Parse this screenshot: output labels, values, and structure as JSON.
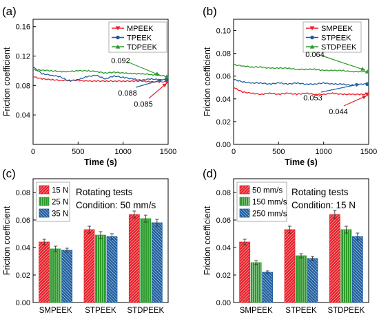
{
  "chart_data": [
    {
      "panel": "(a)",
      "type": "line",
      "xlabel": "Time (s)",
      "ylabel": "Friction coefficient",
      "xlim": [
        0,
        1500
      ],
      "ylim": [
        0.0,
        0.17
      ],
      "xticks": [
        0,
        500,
        1000,
        1500
      ],
      "yticks": [
        0.04,
        0.08,
        0.12,
        0.16
      ],
      "x": [
        0,
        100,
        200,
        300,
        400,
        500,
        600,
        700,
        800,
        900,
        1000,
        1100,
        1200,
        1300,
        1400,
        1500
      ],
      "series": [
        {
          "name": "MPEEK",
          "color": "#e8202a",
          "marker": "triangle-down",
          "values": [
            0.092,
            0.089,
            0.088,
            0.087,
            0.087,
            0.087,
            0.086,
            0.086,
            0.086,
            0.086,
            0.086,
            0.086,
            0.086,
            0.085,
            0.085,
            0.085
          ]
        },
        {
          "name": "TPEEK",
          "color": "#1f5fa0",
          "marker": "circle",
          "values": [
            0.105,
            0.096,
            0.094,
            0.092,
            0.086,
            0.088,
            0.092,
            0.094,
            0.089,
            0.093,
            0.091,
            0.089,
            0.087,
            0.089,
            0.088,
            0.088
          ]
        },
        {
          "name": "TDPEEK",
          "color": "#2d9a2d",
          "marker": "triangle-up",
          "values": [
            0.101,
            0.101,
            0.1,
            0.099,
            0.099,
            0.1,
            0.1,
            0.099,
            0.097,
            0.098,
            0.097,
            0.096,
            0.096,
            0.095,
            0.094,
            0.092
          ]
        }
      ],
      "annotations": [
        {
          "text": "0.092",
          "series": "TDPEEK"
        },
        {
          "text": "0.088",
          "series": "TPEEK"
        },
        {
          "text": "0.085",
          "series": "MPEEK"
        }
      ]
    },
    {
      "panel": "(b)",
      "type": "line",
      "xlabel": "Time (s)",
      "ylabel": "Friction coefficient",
      "xlim": [
        0,
        1500
      ],
      "ylim": [
        0.0,
        0.11
      ],
      "xticks": [
        0,
        500,
        1000,
        1500
      ],
      "yticks": [
        0.0,
        0.02,
        0.04,
        0.06,
        0.08,
        0.1
      ],
      "x": [
        0,
        100,
        200,
        300,
        400,
        500,
        600,
        700,
        800,
        900,
        1000,
        1100,
        1200,
        1300,
        1400,
        1500
      ],
      "series": [
        {
          "name": "SMPEEK",
          "color": "#e8202a",
          "marker": "triangle-down",
          "values": [
            0.05,
            0.046,
            0.045,
            0.044,
            0.045,
            0.044,
            0.045,
            0.044,
            0.045,
            0.044,
            0.044,
            0.045,
            0.044,
            0.044,
            0.044,
            0.044
          ]
        },
        {
          "name": "STPEEK",
          "color": "#1f5fa0",
          "marker": "circle",
          "values": [
            0.057,
            0.055,
            0.054,
            0.054,
            0.053,
            0.054,
            0.053,
            0.054,
            0.053,
            0.053,
            0.054,
            0.053,
            0.053,
            0.052,
            0.053,
            0.053
          ]
        },
        {
          "name": "STDPEEK",
          "color": "#2d9a2d",
          "marker": "triangle-up",
          "values": [
            0.07,
            0.069,
            0.068,
            0.068,
            0.067,
            0.067,
            0.067,
            0.066,
            0.066,
            0.066,
            0.065,
            0.065,
            0.065,
            0.064,
            0.064,
            0.064
          ]
        }
      ],
      "annotations": [
        {
          "text": "0.064",
          "series": "STDPEEK"
        },
        {
          "text": "0.053",
          "series": "STPEEK"
        },
        {
          "text": "0.044",
          "series": "SMPEEK"
        }
      ]
    },
    {
      "panel": "(c)",
      "type": "bar",
      "ylabel": "Friction coefficient",
      "ylim": [
        0.0,
        0.09
      ],
      "yticks": [
        0.0,
        0.02,
        0.04,
        0.06,
        0.08
      ],
      "categories": [
        "SMPEEK",
        "STPEEK",
        "STDPEEK"
      ],
      "series": [
        {
          "name": "15 N",
          "color": "#e8202a",
          "values": [
            0.044,
            0.053,
            0.064
          ],
          "errors": [
            0.002,
            0.0025,
            0.0025
          ]
        },
        {
          "name": "25 N",
          "color": "#2d9a2d",
          "values": [
            0.039,
            0.049,
            0.061
          ],
          "errors": [
            0.002,
            0.0025,
            0.0025
          ]
        },
        {
          "name": "35 N",
          "color": "#1f5fa0",
          "values": [
            0.038,
            0.048,
            0.058
          ],
          "errors": [
            0.0015,
            0.002,
            0.0025
          ]
        }
      ],
      "note_lines": [
        "Rotating tests",
        "Condition: 50 mm/s"
      ]
    },
    {
      "panel": "(d)",
      "type": "bar",
      "ylabel": "Friction coefficient",
      "ylim": [
        0.0,
        0.09
      ],
      "yticks": [
        0.0,
        0.02,
        0.04,
        0.06,
        0.08
      ],
      "categories": [
        "SMPEEK",
        "STPEEK",
        "STDPEEK"
      ],
      "series": [
        {
          "name": "50 mm/s",
          "color": "#e8202a",
          "values": [
            0.044,
            0.053,
            0.064
          ],
          "errors": [
            0.002,
            0.0025,
            0.003
          ]
        },
        {
          "name": "150 mm/s",
          "color": "#2d9a2d",
          "values": [
            0.029,
            0.034,
            0.053
          ],
          "errors": [
            0.0015,
            0.0015,
            0.0025
          ]
        },
        {
          "name": "250 mm/s",
          "color": "#1f5fa0",
          "values": [
            0.022,
            0.032,
            0.048
          ],
          "errors": [
            0.001,
            0.0015,
            0.0025
          ]
        }
      ],
      "note_lines": [
        "Rotating tests",
        "Condition: 15 N"
      ]
    }
  ]
}
